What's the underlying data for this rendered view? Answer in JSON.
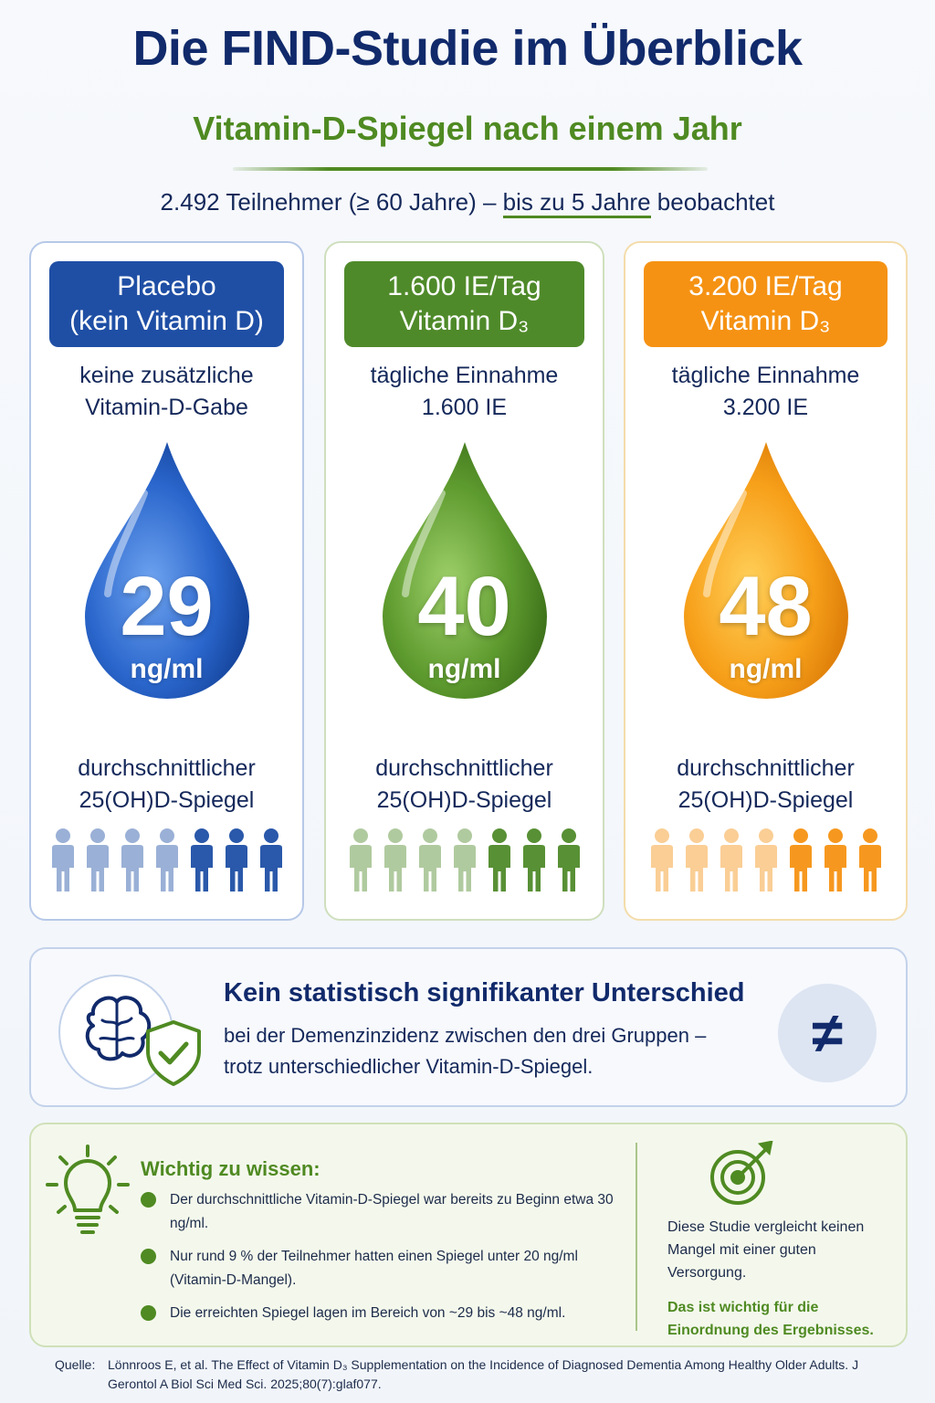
{
  "header": {
    "title": "Die FIND-Studie im Überblick",
    "subtitle": "Vitamin-D-Spiegel nach einem Jahr",
    "participants_prefix": "2.492 Teilnehmer (≥ 60 Jahre) –",
    "participants_highlight": "bis zu 5 Jahre",
    "participants_suffix": "beobachtet"
  },
  "groups": [
    {
      "head_line1": "Placebo",
      "head_line2": "(kein Vitamin D)",
      "desc_line1": "keine zusätzliche",
      "desc_line2": "Vitamin-D-Gabe",
      "value": "29",
      "unit": "ng/ml",
      "foot_line1": "durchschnittlicher",
      "foot_line2": "25(OH)D-Spiegel",
      "color": "#1f4fa5"
    },
    {
      "head_line1": "1.600 IE/Tag",
      "head_line2": "Vitamin D₃",
      "desc_line1": "tägliche Einnahme",
      "desc_line2": "1.600 IE",
      "value": "40",
      "unit": "ng/ml",
      "foot_line1": "durchschnittlicher",
      "foot_line2": "25(OH)D-Spiegel",
      "color": "#4f8a2a"
    },
    {
      "head_line1": "3.200 IE/Tag",
      "head_line2": "Vitamin D₃",
      "desc_line1": "tägliche Einnahme",
      "desc_line2": "3.200 IE",
      "value": "48",
      "unit": "ng/ml",
      "foot_line1": "durchschnittlicher",
      "foot_line2": "25(OH)D-Spiegel",
      "color": "#f59213"
    }
  ],
  "result": {
    "title": "Kein statistisch signifikanter Unterschied",
    "line1": "bei der Demenzinzidenz zwischen den drei Gruppen –",
    "line2": "trotz unterschiedlicher Vitamin-D-Spiegel.",
    "symbol": "≠"
  },
  "info": {
    "title": "Wichtig zu wissen:",
    "items": [
      "Der durchschnittliche Vitamin-D-Spiegel war bereits zu Beginn etwa 30 ng/ml.",
      "Nur rund 9 % der Teilnehmer hatten einen Spiegel unter 20 ng/ml (Vitamin-D-Mangel).",
      "Die erreichten Spiegel lagen im Bereich von ~29 bis ~48 ng/ml."
    ],
    "note": "Diese Studie vergleicht keinen Mangel mit einer guten Versorgung.",
    "note_emphasis": "Das ist wichtig für die Einordnung des Ergebnisses."
  },
  "source": {
    "label": "Quelle:",
    "text": "Lönnroos E, et al. The Effect of Vitamin D₃ Supplementation on the Incidence of Diagnosed Dementia Among Healthy Older Adults. J Gerontol A Biol Sci Med Sci. 2025;80(7):glaf077."
  },
  "icons": [
    "brain-shield-icon",
    "not-equal-icon",
    "lightbulb-icon",
    "target-icon",
    "check-icon",
    "person-icon",
    "drop-icon"
  ]
}
